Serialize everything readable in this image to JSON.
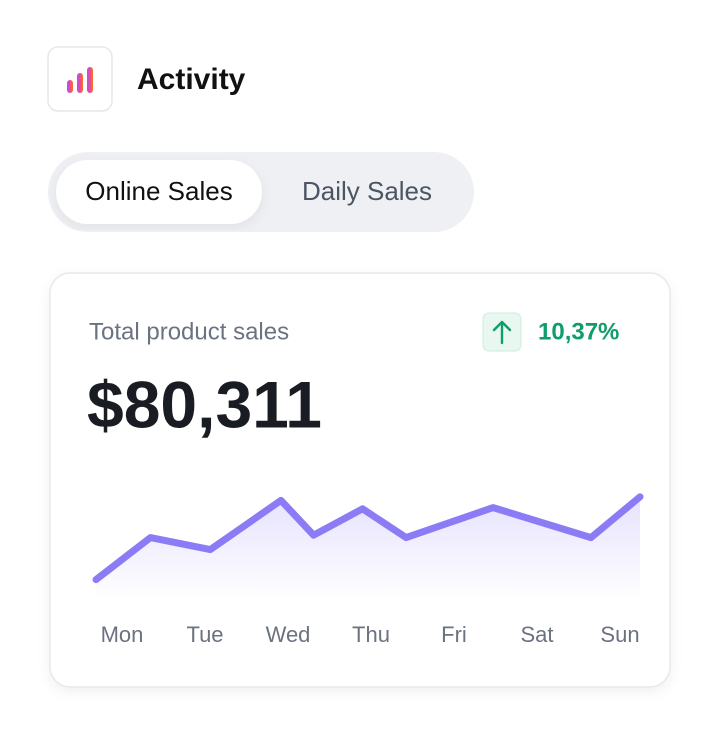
{
  "header": {
    "title": "Activity"
  },
  "tabs": [
    {
      "label": "Online Sales",
      "active": true
    },
    {
      "label": "Daily Sales",
      "active": false
    }
  ],
  "card": {
    "label": "Total product sales",
    "change": "10,37%",
    "total": "$80,311"
  },
  "chart_data": {
    "type": "line",
    "categories": [
      "Mon",
      "Tue",
      "Wed",
      "Thu",
      "Fri",
      "Sat",
      "Sun"
    ],
    "x": [
      0,
      10,
      21,
      34,
      40,
      49,
      57,
      73,
      91,
      100
    ],
    "xlim": [
      0,
      100
    ],
    "ylim": [
      0,
      100
    ],
    "series": [
      {
        "color": "#8b7cf6",
        "values": [
          17,
          52,
          42,
          83,
          54,
          76,
          52,
          77,
          52,
          86
        ]
      }
    ]
  }
}
